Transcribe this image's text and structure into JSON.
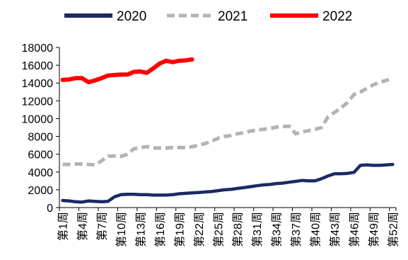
{
  "chart_data": {
    "type": "line",
    "title": "",
    "xlabel": "",
    "ylabel": "",
    "ylim": [
      0,
      18000
    ],
    "yticks": [
      0,
      2000,
      4000,
      6000,
      8000,
      10000,
      12000,
      14000,
      16000,
      18000
    ],
    "ytick_labels": [
      "0",
      "2000",
      "4000",
      "6000",
      "8000",
      "10000",
      "12000",
      "14000",
      "16000",
      "18000"
    ],
    "x_tick_labels": [
      "第1周",
      "第4周",
      "第7周",
      "第10周",
      "第13周",
      "第16周",
      "第19周",
      "第22周",
      "第25周",
      "第28周",
      "第31周",
      "第34周",
      "第37周",
      "第40周",
      "第43周",
      "第46周",
      "第49周",
      "第52周"
    ],
    "x_tick_weeks": [
      1,
      4,
      7,
      10,
      13,
      16,
      19,
      22,
      25,
      28,
      31,
      34,
      37,
      40,
      43,
      46,
      49,
      52
    ],
    "grid": false,
    "legend_position": "top",
    "series": [
      {
        "name": "2020",
        "color": "#1b2a63",
        "style": "solid",
        "x": [
          1,
          2,
          3,
          4,
          5,
          6,
          7,
          8,
          9,
          10,
          11,
          12,
          13,
          14,
          15,
          16,
          17,
          18,
          19,
          20,
          21,
          22,
          23,
          24,
          25,
          26,
          27,
          28,
          29,
          30,
          31,
          32,
          33,
          34,
          35,
          36,
          37,
          38,
          39,
          40,
          41,
          42,
          43,
          44,
          45,
          46,
          47,
          48,
          49,
          50,
          51,
          52
        ],
        "values": [
          800,
          750,
          650,
          620,
          750,
          700,
          650,
          700,
          1200,
          1450,
          1500,
          1500,
          1450,
          1450,
          1400,
          1400,
          1400,
          1450,
          1550,
          1600,
          1650,
          1700,
          1750,
          1800,
          1900,
          2000,
          2050,
          2150,
          2250,
          2350,
          2450,
          2550,
          2600,
          2700,
          2750,
          2850,
          2950,
          3050,
          3000,
          3000,
          3250,
          3550,
          3800,
          3800,
          3850,
          3950,
          4750,
          4800,
          4750,
          4750,
          4800,
          4850
        ]
      },
      {
        "name": "2021",
        "color": "#b3b3b3",
        "style": "dashed",
        "x": [
          1,
          2,
          3,
          4,
          5,
          6,
          7,
          8,
          9,
          10,
          11,
          12,
          13,
          14,
          15,
          16,
          17,
          18,
          19,
          20,
          21,
          22,
          23,
          24,
          25,
          26,
          27,
          28,
          29,
          30,
          31,
          32,
          33,
          34,
          35,
          36,
          37,
          38,
          39,
          40,
          41,
          42,
          43,
          44,
          45,
          46,
          47,
          48,
          49,
          50,
          51,
          52
        ],
        "values": [
          4850,
          4850,
          4900,
          4900,
          4850,
          4800,
          5250,
          5800,
          5800,
          5750,
          6000,
          6600,
          6750,
          6850,
          6700,
          6700,
          6700,
          6750,
          6750,
          6750,
          6850,
          7000,
          7200,
          7450,
          7800,
          8000,
          8100,
          8300,
          8400,
          8600,
          8700,
          8800,
          8900,
          9050,
          9100,
          9150,
          8300,
          8500,
          8650,
          8800,
          9000,
          10200,
          10700,
          11200,
          11800,
          12700,
          13000,
          13400,
          13800,
          14100,
          14300,
          14500
        ]
      },
      {
        "name": "2022",
        "color": "#ff0000",
        "style": "solid",
        "x": [
          1,
          2,
          3,
          4,
          5,
          6,
          7,
          8,
          9,
          10,
          11,
          12,
          13,
          14,
          15,
          16,
          17,
          18,
          19,
          20,
          21
        ],
        "values": [
          14350,
          14400,
          14550,
          14550,
          14100,
          14300,
          14550,
          14850,
          14900,
          14950,
          14950,
          15250,
          15300,
          15150,
          15650,
          16200,
          16500,
          16350,
          16500,
          16550,
          16650
        ]
      }
    ]
  }
}
